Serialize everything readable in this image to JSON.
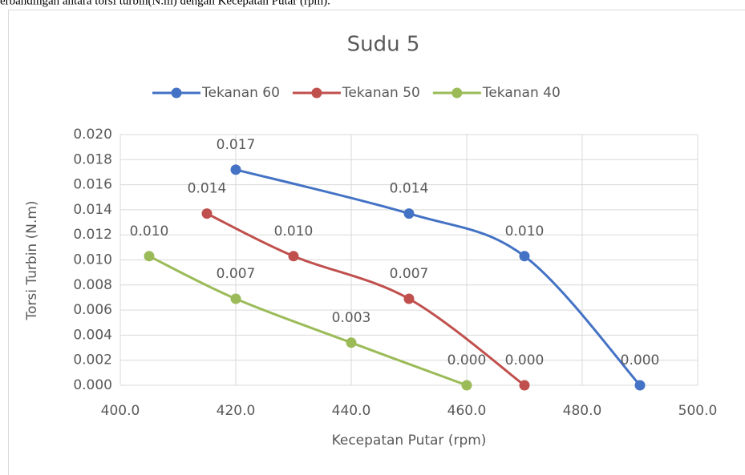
{
  "caption": "erbandingan antara torsi turbin(N.m) dengan Kecepatan Putar (rpm).",
  "chart_data": {
    "type": "scatter",
    "smooth": true,
    "title": "Sudu 5",
    "x_label": "Kecepatan Putar (rpm)",
    "y_label": "Torsi Turbin (N.m)",
    "legend": "top",
    "grid": true,
    "xlim": [
      400,
      500
    ],
    "xticks": [
      {
        "value": 400,
        "label": "400.0"
      },
      {
        "value": 420,
        "label": "420.0"
      },
      {
        "value": 440,
        "label": "440.0"
      },
      {
        "value": 460,
        "label": "460.0"
      },
      {
        "value": 480,
        "label": "480.0"
      },
      {
        "value": 500,
        "label": "500.0"
      }
    ],
    "ylim": [
      0,
      0.02
    ],
    "yticks": [
      {
        "value": 0,
        "label": "0.000"
      },
      {
        "value": 0.002,
        "label": "0.002"
      },
      {
        "value": 0.004,
        "label": "0.004"
      },
      {
        "value": 0.006,
        "label": "0.006"
      },
      {
        "value": 0.008,
        "label": "0.008"
      },
      {
        "value": 0.01,
        "label": "0.010"
      },
      {
        "value": 0.012,
        "label": "0.012"
      },
      {
        "value": 0.014,
        "label": "0.014"
      },
      {
        "value": 0.016,
        "label": "0.016"
      },
      {
        "value": 0.018,
        "label": "0.018"
      },
      {
        "value": 0.02,
        "label": "0.020"
      }
    ],
    "series": [
      {
        "name": "Tekanan 60",
        "color": "#4472c4",
        "x": [
          420,
          450,
          470,
          490
        ],
        "values": [
          0.0172,
          0.0137,
          0.0103,
          0
        ],
        "value_labels": [
          "0.017",
          "0.014",
          "0.010",
          "0.000"
        ]
      },
      {
        "name": "Tekanan 50",
        "color": "#c0504d",
        "x": [
          415,
          430,
          450,
          470
        ],
        "values": [
          0.0137,
          0.0103,
          0.0069,
          0
        ],
        "value_labels": [
          "0.014",
          "0.010",
          "0.007",
          "0.000"
        ]
      },
      {
        "name": "Tekanan 40",
        "color": "#9bbb59",
        "x": [
          405,
          420,
          440,
          460
        ],
        "values": [
          0.0103,
          0.0069,
          0.0034,
          0
        ],
        "value_labels": [
          "0.010",
          "0.007",
          "0.003",
          "0.000"
        ]
      }
    ]
  }
}
